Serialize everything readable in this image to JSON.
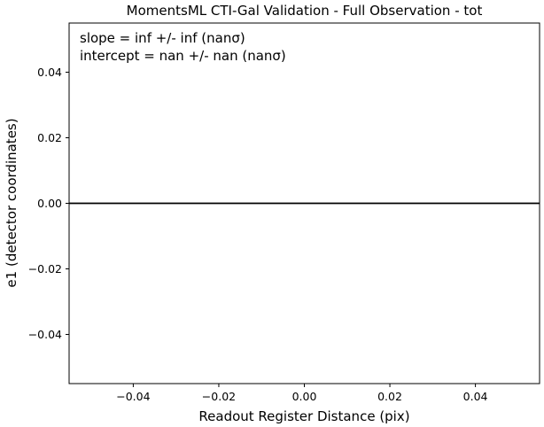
{
  "chart_data": {
    "type": "line",
    "title": "MomentsML CTI-Gal Validation - Full Observation - tot",
    "xlabel": "Readout Register Distance (pix)",
    "ylabel": "e1 (detector coordinates)",
    "xlim": [
      -0.055,
      0.055
    ],
    "ylim": [
      -0.055,
      0.055
    ],
    "x_ticks": [
      {
        "value": -0.04,
        "label": "−0.04"
      },
      {
        "value": -0.02,
        "label": "−0.02"
      },
      {
        "value": 0.0,
        "label": "0.00"
      },
      {
        "value": 0.02,
        "label": "0.02"
      },
      {
        "value": 0.04,
        "label": "0.04"
      }
    ],
    "y_ticks": [
      {
        "value": -0.04,
        "label": "−0.04"
      },
      {
        "value": -0.02,
        "label": "−0.02"
      },
      {
        "value": 0.0,
        "label": "0.00"
      },
      {
        "value": 0.02,
        "label": "0.02"
      },
      {
        "value": 0.04,
        "label": "0.04"
      }
    ],
    "annotations": [
      "slope = inf +/- inf (nanσ)",
      "intercept = nan +/- nan (nanσ)"
    ],
    "reference_line": {
      "y": 0.0,
      "color": "#000000"
    },
    "grid": false
  }
}
